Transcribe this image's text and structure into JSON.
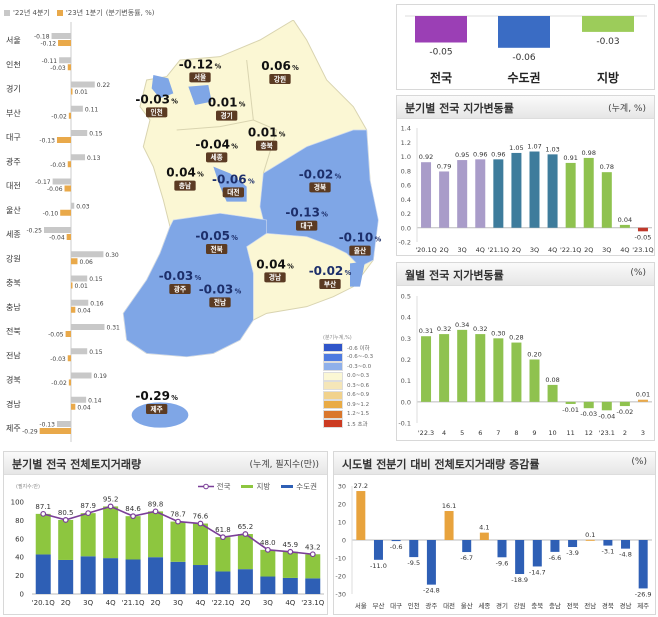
{
  "region_chart": {
    "legend": {
      "q4": "'22년 4분기",
      "q1": "'23년 1분기",
      "unit": "(분기변동률, %)"
    },
    "colors": {
      "q4": "#c8c8c8",
      "q1": "#e9a94a"
    }
  },
  "map": {
    "unit_symbol": "%",
    "colors": {
      "decline": "#7fa6e6",
      "rise": "#fbf7d4",
      "label_box": "#5b3b23"
    },
    "regions": [
      {
        "name": "서울",
        "value": "-0.12"
      },
      {
        "name": "강원",
        "value": "0.06"
      },
      {
        "name": "인천",
        "value": "-0.03"
      },
      {
        "name": "경기",
        "value": "0.01"
      },
      {
        "name": "충북",
        "value": "0.01"
      },
      {
        "name": "세종",
        "value": "-0.04"
      },
      {
        "name": "충남",
        "value": "0.04"
      },
      {
        "name": "대전",
        "value": "-0.06"
      },
      {
        "name": "경북",
        "value": "-0.02"
      },
      {
        "name": "대구",
        "value": "-0.13"
      },
      {
        "name": "전북",
        "value": "-0.05"
      },
      {
        "name": "울산",
        "value": "-0.10"
      },
      {
        "name": "경남",
        "value": "0.04"
      },
      {
        "name": "부산",
        "value": "-0.02"
      },
      {
        "name": "광주",
        "value": "-0.03"
      },
      {
        "name": "전남",
        "value": "-0.03"
      },
      {
        "name": "제주",
        "value": "-0.29"
      }
    ],
    "legend": {
      "title": "(분기누계,%)",
      "items": [
        {
          "label": "-0.6 이하",
          "color": "#2f55c9"
        },
        {
          "label": "-0.6~-0.3",
          "color": "#4f7be0"
        },
        {
          "label": "-0.3~0.0",
          "color": "#8fb0ea"
        },
        {
          "label": "0.0~0.3",
          "color": "#fbf7d4"
        },
        {
          "label": "0.3~0.6",
          "color": "#f5e6b8"
        },
        {
          "label": "0.6~0.9",
          "color": "#f1d28c"
        },
        {
          "label": "0.9~1.2",
          "color": "#e9ab45"
        },
        {
          "label": "1.2~1.5",
          "color": "#d9772c"
        },
        {
          "label": "1.5 초과",
          "color": "#cc3b22"
        }
      ]
    }
  },
  "quarterly_panel": {
    "title": "분기별 전국 지가변동률",
    "unit": "(누계, %)"
  },
  "monthly_panel": {
    "title": "월별 전국 지가변동률",
    "unit": "(%)"
  },
  "volume_panel": {
    "title": "분기별 전국 전체토지거래량",
    "unit": "(누계, 필지수(만))",
    "yunit": "(필지수:만)"
  },
  "change_panel": {
    "title": "시도별 전분기 대비 전체토지거래량 증감률",
    "unit": "(%)"
  },
  "chart_data": [
    {
      "type": "bar",
      "orientation": "horizontal",
      "categories": [
        "서울",
        "인천",
        "경기",
        "부산",
        "대구",
        "광주",
        "대전",
        "울산",
        "세종",
        "강원",
        "충북",
        "충남",
        "전북",
        "전남",
        "경북",
        "경남",
        "제주"
      ],
      "series": [
        {
          "name": "'22년 4분기",
          "values": [
            -0.18,
            -0.11,
            0.22,
            0.11,
            0.15,
            0.13,
            -0.17,
            0.03,
            -0.25,
            0.3,
            0.15,
            0.16,
            0.31,
            0.15,
            0.19,
            0.14,
            -0.13
          ]
        },
        {
          "name": "'23년 1분기",
          "values": [
            -0.12,
            -0.03,
            0.01,
            -0.02,
            -0.13,
            -0.03,
            -0.06,
            -0.1,
            -0.04,
            0.06,
            0.01,
            0.04,
            -0.05,
            -0.03,
            -0.02,
            0.04,
            -0.29
          ]
        }
      ]
    },
    {
      "type": "bar",
      "categories": [
        "전국",
        "수도권",
        "지방"
      ],
      "values": [
        -0.05,
        -0.06,
        -0.03
      ],
      "colors": [
        "#9b3fb5",
        "#3a6cc4",
        "#9ccc5a"
      ]
    },
    {
      "type": "bar",
      "title": "분기별 전국 지가변동률",
      "categories": [
        "'20.1Q",
        "2Q",
        "3Q",
        "4Q",
        "'21.1Q",
        "2Q",
        "3Q",
        "4Q",
        "'22.1Q",
        "2Q",
        "3Q",
        "4Q",
        "'23.1Q"
      ],
      "values": [
        0.92,
        0.79,
        0.95,
        0.96,
        0.96,
        1.05,
        1.07,
        1.03,
        0.91,
        0.98,
        0.78,
        0.04,
        -0.05
      ],
      "colors": [
        "#a99cc9",
        "#a99cc9",
        "#a99cc9",
        "#a99cc9",
        "#3e7c9c",
        "#3e7c9c",
        "#3e7c9c",
        "#3e7c9c",
        "#8fc24f",
        "#8fc24f",
        "#8fc24f",
        "#8fc24f",
        "#c0392b"
      ],
      "ylim": [
        -0.2,
        1.4
      ],
      "yticks": [
        "-0.2",
        "0.0",
        "0.2",
        "0.4",
        "0.6",
        "0.8",
        "1.0",
        "1.2",
        "1.4"
      ]
    },
    {
      "type": "bar",
      "title": "월별 전국 지가변동률",
      "categories": [
        "'22.3",
        "4",
        "5",
        "6",
        "7",
        "8",
        "9",
        "10",
        "11",
        "12",
        "'23.1",
        "2",
        "3"
      ],
      "values": [
        0.31,
        0.32,
        0.34,
        0.32,
        0.3,
        0.28,
        0.2,
        0.08,
        -0.01,
        -0.03,
        -0.04,
        -0.02,
        0.01
      ],
      "colors": [
        "#8fc24f",
        "#8fc24f",
        "#8fc24f",
        "#8fc24f",
        "#8fc24f",
        "#8fc24f",
        "#8fc24f",
        "#8fc24f",
        "#8fc24f",
        "#8fc24f",
        "#8fc24f",
        "#8fc24f",
        "#e9a94a"
      ],
      "ylim": [
        -0.1,
        0.5
      ],
      "yticks": [
        "-0.1",
        "0.0",
        "0.1",
        "0.2",
        "0.3",
        "0.4",
        "0.5"
      ]
    },
    {
      "type": "bar",
      "stacked": true,
      "title": "분기별 전국 전체토지거래량",
      "categories": [
        "'20.1Q",
        "2Q",
        "3Q",
        "4Q",
        "'21.1Q",
        "2Q",
        "3Q",
        "4Q",
        "'22.1Q",
        "2Q",
        "3Q",
        "4Q",
        "'23.1Q"
      ],
      "series": [
        {
          "name": "수도권",
          "color": "#2e5fb5",
          "values": [
            43,
            37,
            41,
            39,
            37.5,
            40,
            35,
            31.5,
            24.5,
            27,
            19,
            17.5,
            17
          ]
        },
        {
          "name": "지방",
          "color": "#8dc63f",
          "values": [
            44.1,
            43.5,
            46.9,
            56.2,
            47.1,
            49.8,
            43.7,
            45.1,
            37.3,
            38.2,
            29,
            28.4,
            26.2
          ]
        },
        {
          "name": "전국",
          "type": "line",
          "color": "#7b3f98",
          "values": [
            87.1,
            80.5,
            87.9,
            95.2,
            84.6,
            89.8,
            78.7,
            76.6,
            61.8,
            65.2,
            48.0,
            45.9,
            43.2
          ]
        }
      ],
      "labels": [
        "87.1",
        "80.5",
        "87.9",
        "95.2",
        "84.6",
        "89.8",
        "78.7",
        "76.6",
        "61.8",
        "65.2",
        "48.0",
        "45.9",
        "43.2"
      ],
      "ylim": [
        0,
        100
      ],
      "yticks": [
        "0",
        "20",
        "40",
        "60",
        "80",
        "100"
      ],
      "legend": "top-right"
    },
    {
      "type": "bar",
      "title": "시도별 전분기 대비 전체토지거래량 증감률",
      "categories": [
        "서울",
        "부산",
        "대구",
        "인천",
        "광주",
        "대전",
        "울산",
        "세종",
        "경기",
        "강원",
        "충북",
        "충남",
        "전북",
        "전남",
        "경북",
        "경남",
        "제주"
      ],
      "values": [
        27.2,
        -11.0,
        -0.6,
        -9.5,
        -24.8,
        16.1,
        -6.7,
        4.1,
        -9.6,
        -18.9,
        -14.7,
        -6.6,
        -3.9,
        0.1,
        -3.1,
        -4.8,
        -26.9
      ],
      "labels": [
        "27.2",
        "-11.0",
        "-0.6",
        "-9.5",
        "-24.8",
        "16.1",
        "-6.7",
        "4.1",
        "-9.6",
        "-18.9",
        "-14.7",
        "-6.6",
        "-3.9",
        "0.1",
        "-3.1",
        "-4.8",
        "-26.9"
      ],
      "colors": {
        "positive": "#e8a33d",
        "negative": "#2e5fb5"
      },
      "ylim": [
        -30,
        30
      ],
      "yticks": [
        "-30",
        "-20",
        "-10",
        "0",
        "10",
        "20",
        "30"
      ]
    }
  ]
}
